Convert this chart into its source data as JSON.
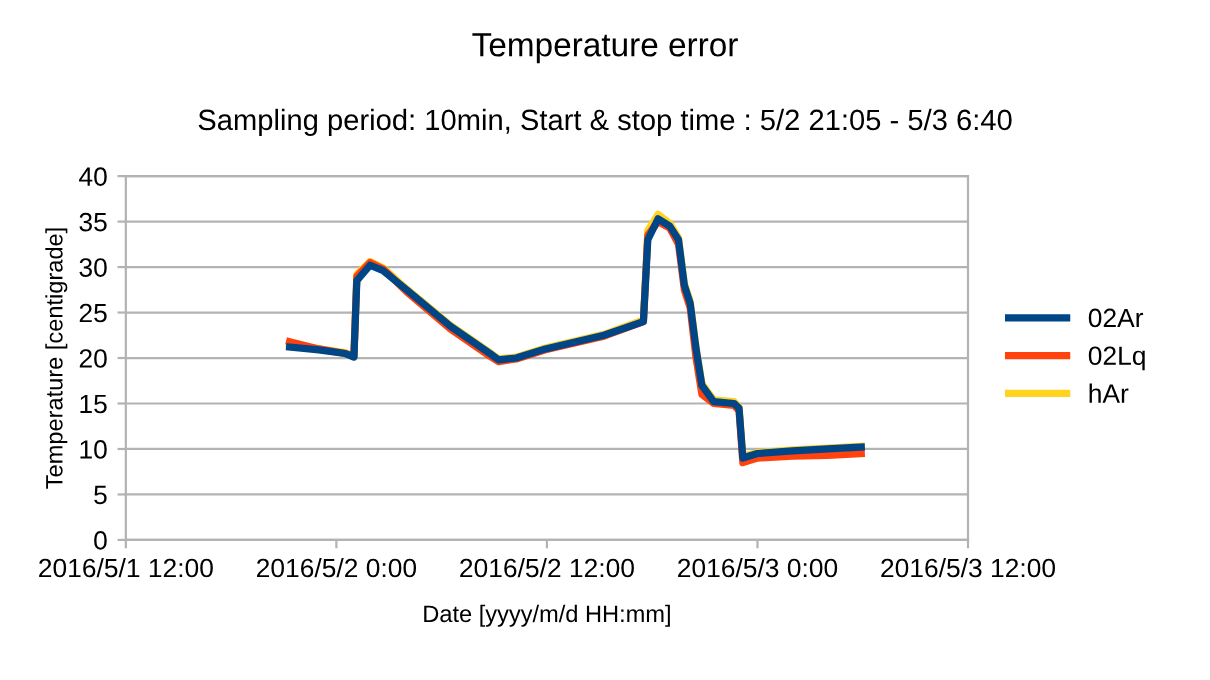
{
  "chart_data": {
    "type": "line",
    "title": "Temperature error",
    "subtitle": "Sampling period: 10min, Start & stop time : 5/2 21:05 - 5/3 6:40",
    "xlabel": "Date [yyyy/m/d HH:mm]",
    "ylabel": "Temperature [centigrade]",
    "x": [
      "2016-05-01T21:20",
      "2016-05-01T23:00",
      "2016-05-02T00:30",
      "2016-05-02T01:00",
      "2016-05-02T01:10",
      "2016-05-02T01:55",
      "2016-05-02T02:40",
      "2016-05-02T04:00",
      "2016-05-02T06:30",
      "2016-05-02T08:45",
      "2016-05-02T09:15",
      "2016-05-02T10:15",
      "2016-05-02T11:55",
      "2016-05-02T15:15",
      "2016-05-02T17:30",
      "2016-05-02T17:45",
      "2016-05-02T18:20",
      "2016-05-02T19:00",
      "2016-05-02T19:30",
      "2016-05-02T19:50",
      "2016-05-02T20:10",
      "2016-05-02T20:30",
      "2016-05-02T20:50",
      "2016-05-02T21:30",
      "2016-05-02T22:40",
      "2016-05-02T22:57",
      "2016-05-02T23:10",
      "2016-05-03T00:00",
      "2016-05-03T02:00",
      "2016-05-03T04:00",
      "2016-05-03T05:55"
    ],
    "series": [
      {
        "name": "02Ar",
        "color": "#004586",
        "values": [
          21.2,
          20.9,
          20.5,
          20.1,
          28.5,
          30.2,
          29.6,
          27.5,
          23.5,
          20.5,
          19.8,
          20.0,
          21.0,
          22.5,
          24.0,
          33.0,
          35.3,
          34.5,
          33.0,
          28.0,
          26.0,
          21.0,
          17.0,
          15.2,
          15.0,
          14.5,
          9.0,
          9.5,
          9.8,
          10.0,
          10.2
        ]
      },
      {
        "name": "02Lq",
        "color": "#ff420e",
        "values": [
          21.8,
          21.0,
          20.5,
          20.2,
          29.0,
          30.5,
          29.8,
          27.3,
          23.2,
          20.2,
          19.6,
          19.9,
          20.9,
          22.4,
          24.0,
          33.5,
          35.0,
          34.3,
          32.5,
          27.5,
          25.5,
          20.0,
          16.0,
          15.0,
          14.8,
          14.2,
          8.5,
          9.0,
          9.2,
          9.3,
          9.5
        ]
      },
      {
        "name": "hAr",
        "color": "#ffd320",
        "values": [
          21.5,
          21.0,
          20.6,
          20.2,
          29.2,
          30.6,
          29.9,
          27.6,
          23.6,
          20.6,
          19.9,
          20.1,
          21.1,
          22.6,
          24.2,
          34.0,
          35.8,
          34.8,
          33.2,
          28.2,
          26.2,
          21.2,
          17.2,
          15.4,
          15.2,
          14.6,
          9.2,
          9.6,
          9.9,
          10.1,
          10.3
        ]
      }
    ],
    "xlim": [
      "2016-05-01T12:00",
      "2016-05-03T12:00"
    ],
    "xticks": [
      {
        "value": "2016-05-01T12:00",
        "label": "2016/5/1 12:00"
      },
      {
        "value": "2016-05-02T00:00",
        "label": "2016/5/2 0:00"
      },
      {
        "value": "2016-05-02T12:00",
        "label": "2016/5/2 12:00"
      },
      {
        "value": "2016-05-03T00:00",
        "label": "2016/5/3 0:00"
      },
      {
        "value": "2016-05-03T12:00",
        "label": "2016/5/3 12:00"
      }
    ],
    "ylim": [
      0,
      40
    ],
    "yticks": [
      0,
      5,
      10,
      15,
      20,
      25,
      30,
      35,
      40
    ],
    "grid": "y",
    "legend": "right",
    "line_style": "solid",
    "marker": "none"
  }
}
